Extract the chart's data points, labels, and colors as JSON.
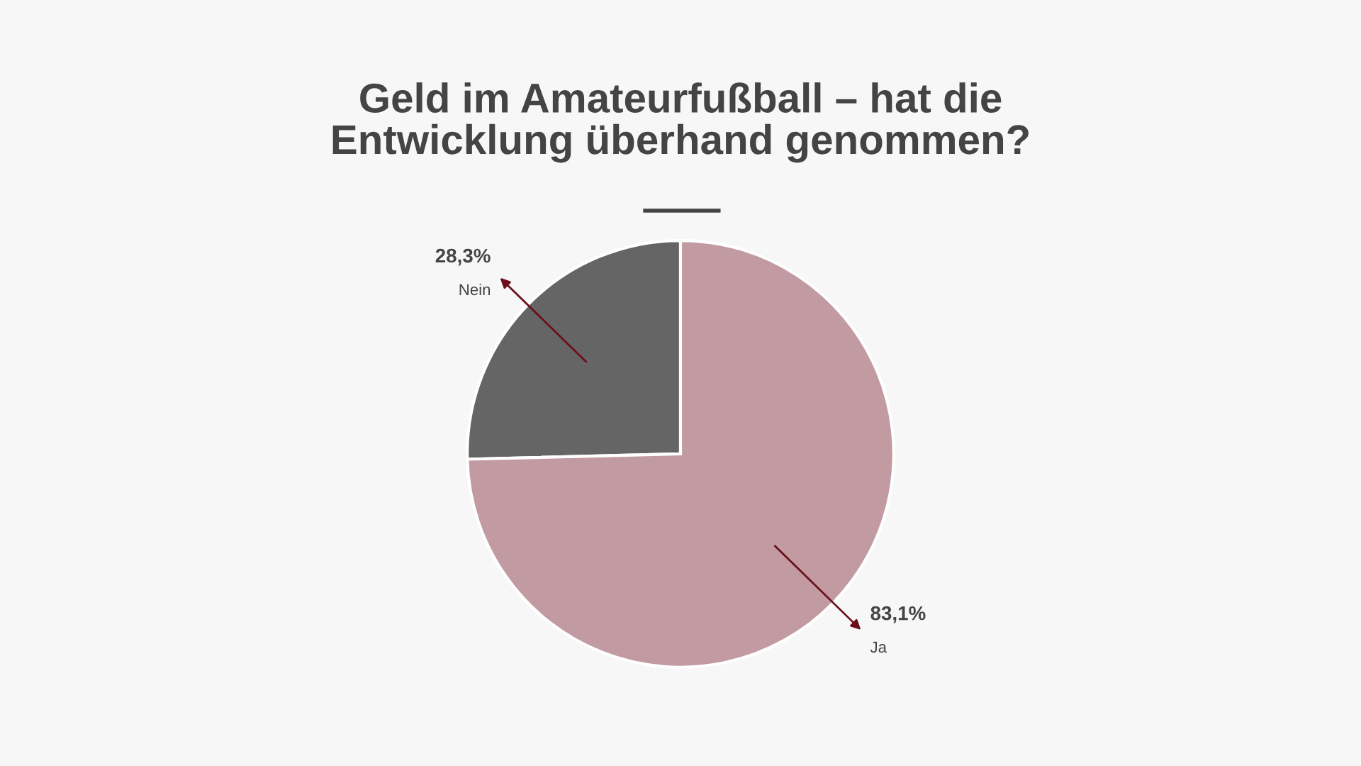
{
  "chart_data": {
    "type": "pie",
    "title": "Geld im Amateurfußball – hat die\nEntwicklung überhand genommen?",
    "categories": [
      "Nein",
      "Ja"
    ],
    "values": [
      28.3,
      83.1
    ],
    "colors": [
      "#656565",
      "#c29aa1"
    ],
    "value_labels": [
      "28,3%",
      "83,1%"
    ],
    "legend": false
  }
}
